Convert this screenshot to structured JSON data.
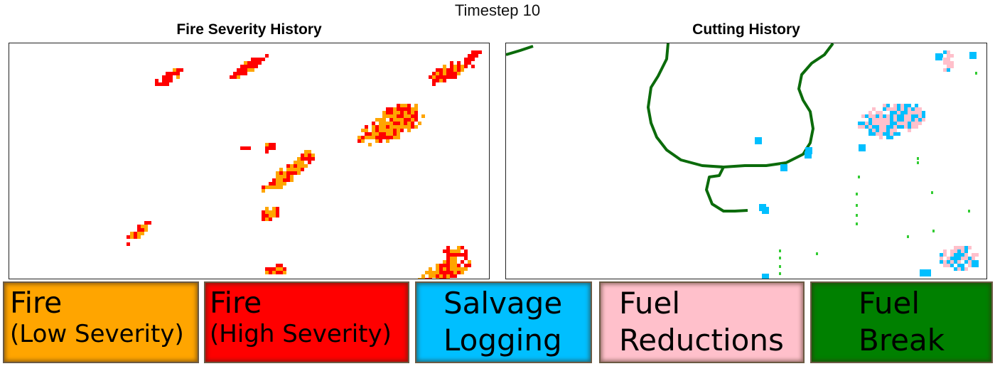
{
  "header": {
    "title": "Timestep 10"
  },
  "panels": [
    {
      "id": "fire",
      "title": "Fire Severity History"
    },
    {
      "id": "cutting",
      "title": "Cutting History"
    }
  ],
  "colors": {
    "fire_low": "#FFA500",
    "fire_high": "#FF0000",
    "salvage": "#00BFFF",
    "fuel_reduction": "#FFC0CB",
    "fuel_break": "#008000",
    "fuel_break_line": "#0B6B0B",
    "fuel_break_spots": "#33CC33"
  },
  "legend": [
    {
      "key": "fire_low",
      "line1": "Fire",
      "line2": "(Low Severity)"
    },
    {
      "key": "fire_high",
      "line1": "Fire",
      "line2": "(High Severity)"
    },
    {
      "key": "salvage",
      "line1": "Salvage",
      "line2": "Logging"
    },
    {
      "key": "fuel_reduction",
      "line1": "Fuel",
      "line2": "Reductions"
    },
    {
      "key": "fuel_break",
      "line1": "Fuel",
      "line2": "Break"
    }
  ],
  "chart_data": [
    {
      "type": "heatmap",
      "title": "Fire Severity History",
      "categories": [
        "Fire (Low Severity)",
        "Fire (High Severity)"
      ],
      "grid": false
    },
    {
      "type": "heatmap",
      "title": "Cutting History",
      "categories": [
        "Salvage Logging",
        "Fuel Reductions",
        "Fuel Break"
      ],
      "grid": false
    }
  ]
}
